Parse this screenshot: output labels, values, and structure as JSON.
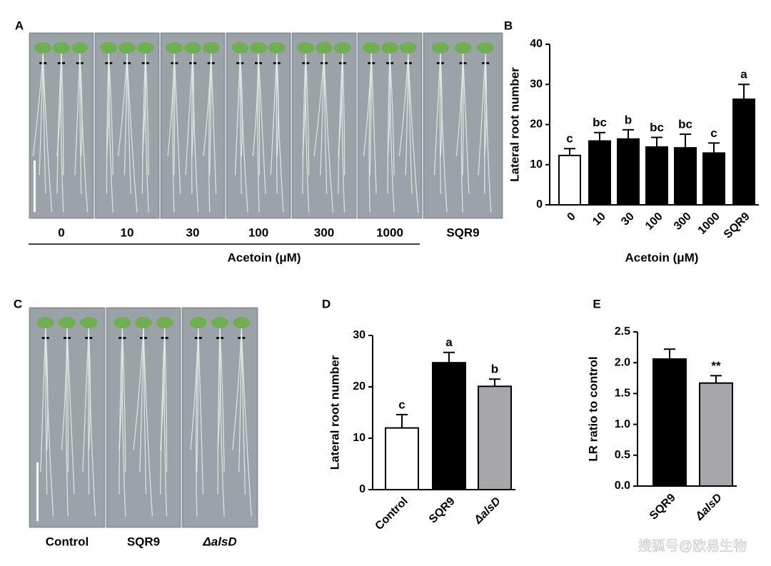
{
  "panels": [
    "A",
    "B",
    "C",
    "D",
    "E"
  ],
  "photo_a": {
    "labels": [
      "0",
      "10",
      "30",
      "100",
      "300",
      "1000",
      "SQR9"
    ],
    "xlabel": "Acetoin (μM)"
  },
  "photo_c": {
    "labels": [
      "Control",
      "SQR9",
      "ΔalsD"
    ]
  },
  "watermark": "搜狐号@欧易生物",
  "chart_data": [
    {
      "type": "bar",
      "ylabel": "Lateral root number",
      "xlabel": "Acetoin (μM)",
      "categories": [
        "0",
        "10",
        "30",
        "100",
        "300",
        "1000",
        "SQR9"
      ],
      "values": [
        12.3,
        15.9,
        16.4,
        14.4,
        14.2,
        12.9,
        26.3
      ],
      "errors": [
        1.7,
        2.1,
        2.3,
        2.4,
        3.4,
        2.5,
        3.7
      ],
      "colors": [
        "#ffffff",
        "#000000",
        "#000000",
        "#000000",
        "#000000",
        "#000000",
        "#000000"
      ],
      "annotations": [
        "c",
        "bc",
        "b",
        "bc",
        "bc",
        "c",
        "a"
      ],
      "ylim": [
        0,
        40
      ],
      "yticks": [
        0,
        10,
        20,
        30,
        40
      ]
    },
    {
      "type": "bar",
      "ylabel": "Lateral root number",
      "categories": [
        "Control",
        "SQR9",
        "ΔalsD"
      ],
      "values": [
        12.0,
        24.7,
        20.1
      ],
      "errors": [
        2.6,
        2.0,
        1.4
      ],
      "colors": [
        "#ffffff",
        "#000000",
        "#a6a6ab"
      ],
      "annotations": [
        "c",
        "a",
        "b"
      ],
      "ylim": [
        0,
        30
      ],
      "yticks": [
        0,
        10,
        20,
        30
      ]
    },
    {
      "type": "bar",
      "ylabel": "LR ratio to control",
      "categories": [
        "SQR9",
        "ΔalsD"
      ],
      "values": [
        2.06,
        1.67
      ],
      "errors": [
        0.16,
        0.12
      ],
      "colors": [
        "#000000",
        "#a6a6ab"
      ],
      "annotations": [
        null,
        "**"
      ],
      "ylim": [
        0,
        2.5
      ],
      "yticks": [
        {
          "value": 0,
          "label": "0.0"
        },
        0.5,
        {
          "value": 1,
          "label": "1.0"
        },
        1.5,
        {
          "value": 2,
          "label": "2.0"
        },
        2.5
      ]
    }
  ]
}
